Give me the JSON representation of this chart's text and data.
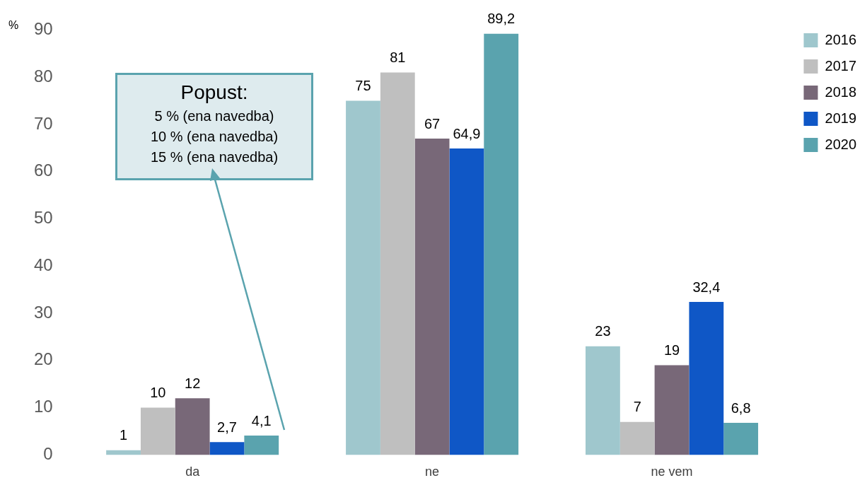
{
  "chart_data": {
    "type": "bar",
    "ylabel": "%",
    "categories": [
      "da",
      "ne",
      "ne vem"
    ],
    "series": [
      {
        "name": "2016",
        "color": "#9fc7cd",
        "values": [
          1,
          75,
          23
        ],
        "value_labels": [
          "1",
          "75",
          "23"
        ]
      },
      {
        "name": "2017",
        "color": "#bfbfbf",
        "values": [
          10,
          81,
          7
        ],
        "value_labels": [
          "10",
          "81",
          "7"
        ]
      },
      {
        "name": "2018",
        "color": "#786878",
        "values": [
          12,
          67,
          19
        ],
        "value_labels": [
          "12",
          "67",
          "19"
        ]
      },
      {
        "name": "2019",
        "color": "#0f57c6",
        "values": [
          2.7,
          64.9,
          32.4
        ],
        "value_labels": [
          "2,7",
          "64,9",
          "32,4"
        ]
      },
      {
        "name": "2020",
        "color": "#5aa3ae",
        "values": [
          4.1,
          89.2,
          6.8
        ],
        "value_labels": [
          "4,1",
          "89,2",
          "6,8"
        ]
      }
    ],
    "ylim": [
      0,
      90
    ],
    "yticks": [
      0,
      10,
      20,
      30,
      40,
      50,
      60,
      70,
      80,
      90
    ],
    "grid": false,
    "legend": "top right",
    "annotations": [
      "Popust:\n5 % (ena navedba)\n10 % (ena navedba)\n15 % (ena navedba)"
    ]
  }
}
